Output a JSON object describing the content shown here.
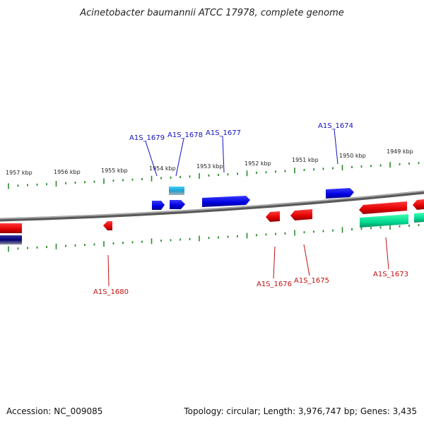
{
  "title": "Acinetobacter baumannii ATCC 17978, complete genome",
  "footer": {
    "accession": "Accession: NC_009085",
    "summary": "Topology: circular; Length: 3,976,747 bp; Genes: 3,435"
  },
  "colors": {
    "forward_gene": "#0000ee",
    "reverse_gene": "#ee0000",
    "rna_feature": "#00cc88",
    "backbone": "#888888",
    "tick": "#2a8a2a",
    "forward_label": "#1010c0",
    "reverse_label": "#c01010"
  },
  "kbp_labels": [
    "1957 kbp",
    "1956 kbp",
    "1955 kbp",
    "1954 kbp",
    "1953 kbp",
    "1952 kbp",
    "1951 kbp",
    "1950 kbp",
    "1949 kbp"
  ],
  "gene_labels_forward": [
    "A1S_1679",
    "A1S_1678",
    "A1S_1677",
    "A1S_1674"
  ],
  "gene_labels_reverse": [
    "A1S_1680",
    "A1S_1676",
    "A1S_1675",
    "A1S_1673"
  ]
}
